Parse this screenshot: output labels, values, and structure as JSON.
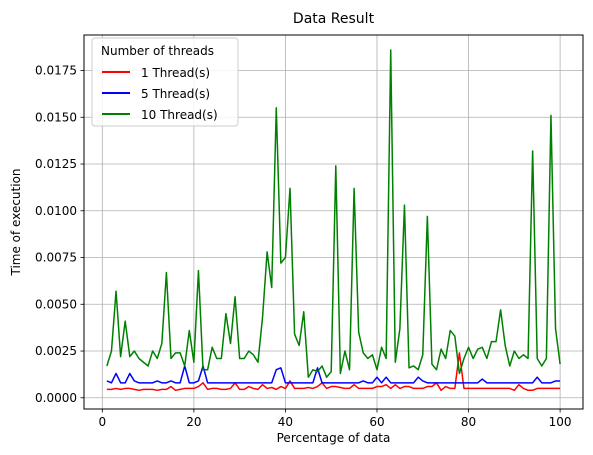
{
  "chart_data": {
    "type": "line",
    "title": "Data Result",
    "xlabel": "Percentage of data",
    "ylabel": "Time of execution",
    "xlim": [
      -4,
      105
    ],
    "ylim": [
      -0.0006,
      0.0194
    ],
    "xticks": [
      0,
      20,
      40,
      60,
      80,
      100
    ],
    "xtick_labels": [
      "0",
      "20",
      "40",
      "60",
      "80",
      "100"
    ],
    "yticks": [
      0,
      0.0025,
      0.005,
      0.0075,
      0.01,
      0.0125,
      0.015,
      0.0175
    ],
    "ytick_labels": [
      "0.0000",
      "0.0025",
      "0.0050",
      "0.0075",
      "0.0100",
      "0.0125",
      "0.0150",
      "0.0175"
    ],
    "grid": true,
    "legend": {
      "title": "Number of threads",
      "position": "top-left"
    },
    "x": [
      1,
      2,
      3,
      4,
      5,
      6,
      7,
      8,
      9,
      10,
      11,
      12,
      13,
      14,
      15,
      16,
      17,
      18,
      19,
      20,
      21,
      22,
      23,
      24,
      25,
      26,
      27,
      28,
      29,
      30,
      31,
      32,
      33,
      34,
      35,
      36,
      37,
      38,
      39,
      40,
      41,
      42,
      43,
      44,
      45,
      46,
      47,
      48,
      49,
      50,
      51,
      52,
      53,
      54,
      55,
      56,
      57,
      58,
      59,
      60,
      61,
      62,
      63,
      64,
      65,
      66,
      67,
      68,
      69,
      70,
      71,
      72,
      73,
      74,
      75,
      76,
      77,
      78,
      79,
      80,
      81,
      82,
      83,
      84,
      85,
      86,
      87,
      88,
      89,
      90,
      91,
      92,
      93,
      94,
      95,
      96,
      97,
      98,
      99,
      100
    ],
    "series": [
      {
        "name": "1 Thread(s)",
        "color": "#ff0000",
        "values": [
          0.00045,
          0.00045,
          0.0005,
          0.00045,
          0.0005,
          0.0005,
          0.00045,
          0.0004,
          0.00045,
          0.00045,
          0.00045,
          0.0004,
          0.00045,
          0.00045,
          0.0006,
          0.0004,
          0.00045,
          0.0005,
          0.0005,
          0.0005,
          0.0006,
          0.0008,
          0.00045,
          0.0005,
          0.0005,
          0.00045,
          0.00045,
          0.0005,
          0.0008,
          0.00045,
          0.00045,
          0.0006,
          0.0005,
          0.00045,
          0.0007,
          0.0005,
          0.00055,
          0.00045,
          0.0006,
          0.0005,
          0.0009,
          0.0005,
          0.0005,
          0.0005,
          0.00055,
          0.0005,
          0.0006,
          0.0008,
          0.0005,
          0.0006,
          0.0006,
          0.00055,
          0.0005,
          0.0005,
          0.0007,
          0.0005,
          0.0005,
          0.0005,
          0.0005,
          0.0006,
          0.0006,
          0.0007,
          0.0005,
          0.0007,
          0.0005,
          0.0006,
          0.0006,
          0.0005,
          0.0005,
          0.0005,
          0.0006,
          0.0006,
          0.0008,
          0.0004,
          0.0006,
          0.0005,
          0.0005,
          0.0024,
          0.0005,
          0.0005,
          0.0005,
          0.0005,
          0.0005,
          0.0005,
          0.0005,
          0.0005,
          0.0005,
          0.0005,
          0.0005,
          0.0004,
          0.0007,
          0.0005,
          0.0004,
          0.0004,
          0.0005,
          0.0005,
          0.0005,
          0.0005,
          0.0005,
          0.0005
        ]
      },
      {
        "name": "5 Thread(s)",
        "color": "#0000ff",
        "values": [
          0.0009,
          0.0008,
          0.0013,
          0.0008,
          0.0008,
          0.0013,
          0.0009,
          0.0008,
          0.0008,
          0.0008,
          0.0008,
          0.0009,
          0.0008,
          0.0008,
          0.0009,
          0.0008,
          0.0008,
          0.0017,
          0.0008,
          0.0008,
          0.0009,
          0.0017,
          0.0008,
          0.0008,
          0.0008,
          0.0008,
          0.0008,
          0.0008,
          0.0008,
          0.0008,
          0.0008,
          0.0008,
          0.0008,
          0.0008,
          0.0008,
          0.0008,
          0.0008,
          0.0015,
          0.0016,
          0.0008,
          0.0008,
          0.0008,
          0.0008,
          0.0008,
          0.0008,
          0.0008,
          0.0016,
          0.0008,
          0.0008,
          0.0008,
          0.0008,
          0.0008,
          0.0008,
          0.0008,
          0.0008,
          0.0008,
          0.0009,
          0.0008,
          0.0008,
          0.0011,
          0.0008,
          0.0011,
          0.0008,
          0.0008,
          0.0008,
          0.0008,
          0.0008,
          0.0008,
          0.0011,
          0.0009,
          0.0008,
          0.0008,
          0.0008,
          0.0008,
          0.0008,
          0.0008,
          0.0008,
          0.0008,
          0.0008,
          0.0008,
          0.0008,
          0.0008,
          0.001,
          0.0008,
          0.0008,
          0.0008,
          0.0008,
          0.0008,
          0.0008,
          0.0008,
          0.0008,
          0.0008,
          0.0008,
          0.0008,
          0.0011,
          0.0008,
          0.0008,
          0.0008,
          0.0009,
          0.0009
        ]
      },
      {
        "name": "10 Thread(s)",
        "color": "#008000",
        "values": [
          0.0017,
          0.0025,
          0.0057,
          0.0022,
          0.0041,
          0.0022,
          0.0025,
          0.0021,
          0.0019,
          0.0017,
          0.0025,
          0.0021,
          0.0029,
          0.0067,
          0.0021,
          0.0024,
          0.0024,
          0.0017,
          0.0036,
          0.0019,
          0.0068,
          0.0015,
          0.0015,
          0.0027,
          0.0021,
          0.0021,
          0.0045,
          0.0029,
          0.0054,
          0.0021,
          0.0021,
          0.0025,
          0.0023,
          0.0019,
          0.0043,
          0.0078,
          0.0059,
          0.0155,
          0.0072,
          0.0075,
          0.0112,
          0.0034,
          0.0028,
          0.0046,
          0.0011,
          0.0015,
          0.0014,
          0.0017,
          0.0011,
          0.0014,
          0.0124,
          0.0013,
          0.0025,
          0.0015,
          0.0112,
          0.0035,
          0.0024,
          0.0021,
          0.0023,
          0.0015,
          0.0027,
          0.0021,
          0.0186,
          0.0019,
          0.0037,
          0.0103,
          0.0016,
          0.0017,
          0.0015,
          0.0023,
          0.0097,
          0.0018,
          0.0015,
          0.0026,
          0.0021,
          0.0036,
          0.0033,
          0.0013,
          0.0021,
          0.0027,
          0.0021,
          0.0026,
          0.0027,
          0.0021,
          0.003,
          0.003,
          0.0047,
          0.0028,
          0.0017,
          0.0025,
          0.0021,
          0.0023,
          0.0021,
          0.0132,
          0.0021,
          0.0017,
          0.0021,
          0.0151,
          0.0037,
          0.0018
        ]
      }
    ]
  }
}
